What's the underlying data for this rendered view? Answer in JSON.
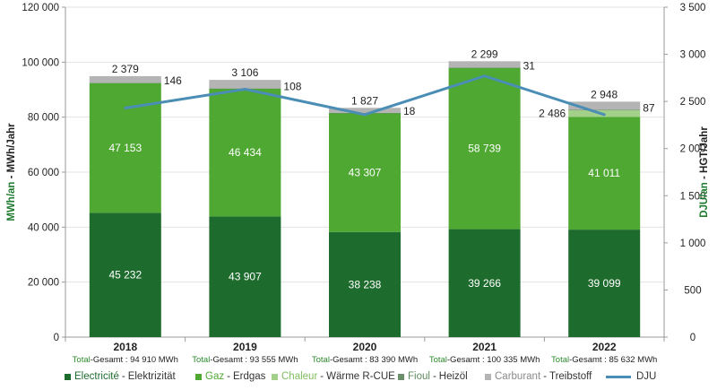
{
  "chart_data": {
    "type": "bar",
    "stacked": true,
    "categories": [
      "2018",
      "2019",
      "2020",
      "2021",
      "2022"
    ],
    "y_left": {
      "label_colored": "MWh/an",
      "label_rest": " - MWh/Jahr",
      "range": [
        0,
        120000
      ],
      "ticks": [
        "0",
        "20 000",
        "40 000",
        "60 000",
        "80 000",
        "100 000",
        "120 000"
      ]
    },
    "y_right": {
      "label_colored": "DJU/an",
      "label_rest": " - HGT/Jahr",
      "range": [
        0,
        3500
      ],
      "ticks": [
        "0",
        "500",
        "1 000",
        "1 500",
        "2 000",
        "2 500",
        "3 000",
        "3 500"
      ]
    },
    "series": [
      {
        "fr": "Electricité",
        "de": "Elektrizität",
        "color": "#1e6b2e",
        "values": [
          45232,
          43907,
          38238,
          39266,
          39099
        ],
        "labels": [
          "45 232",
          "43 907",
          "38 238",
          "39 266",
          "39 099"
        ]
      },
      {
        "fr": "Gaz",
        "de": "Erdgas",
        "color": "#4ea832",
        "values": [
          47153,
          46434,
          43307,
          58739,
          41011
        ],
        "labels": [
          "47 153",
          "46 434",
          "43 307",
          "58 739",
          "41 011"
        ]
      },
      {
        "fr": "Chaleur",
        "de": "Wärme R-CUE",
        "color": "#a3d18a",
        "values": [
          0,
          0,
          0,
          0,
          2486
        ],
        "labels": [
          "",
          "",
          "",
          "",
          "2 486"
        ]
      },
      {
        "fr": "Fioul",
        "de": "Heizöl",
        "color": "#6a8f6a",
        "values": [
          146,
          108,
          18,
          31,
          87
        ],
        "labels": [
          "146",
          "108",
          "18",
          "31",
          "87"
        ]
      },
      {
        "fr": "Carburant",
        "de": "Treibstoff",
        "color": "#b4b4b4",
        "values": [
          2379,
          3106,
          1827,
          2299,
          2948
        ],
        "labels": [
          "2 379",
          "3 106",
          "1 827",
          "2 299",
          "2 948"
        ]
      }
    ],
    "line": {
      "name": "DJU",
      "axis": "right",
      "color": "#4a8db5",
      "values": [
        2430,
        2630,
        2360,
        2770,
        2360
      ]
    },
    "totals": [
      "94 910 MWh",
      "93 555 MWh",
      "83 390 MWh",
      "100 335 MWh",
      "85 632 MWh"
    ],
    "total_prefix_colored": "Total",
    "total_prefix_rest": "-Gesamt : ",
    "legend_placement": "bottom",
    "grid": true,
    "colors": {
      "total_accent": "#2e8b2e",
      "label_dark": "#222222",
      "axis_label": "#1e7a2e"
    }
  }
}
